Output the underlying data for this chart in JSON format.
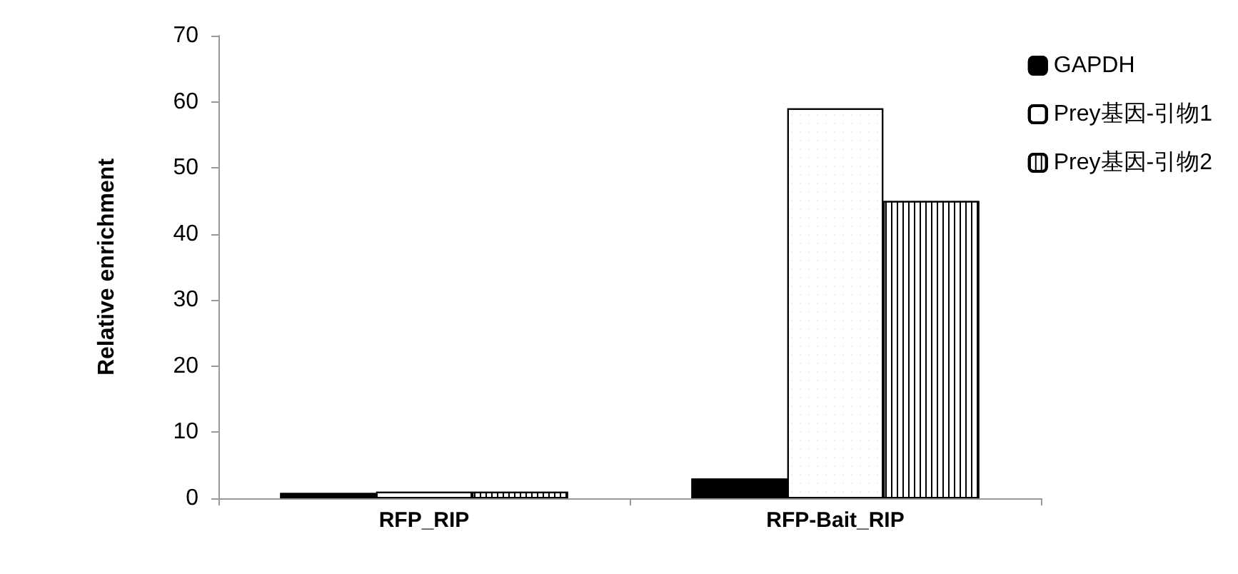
{
  "chart_data": {
    "type": "bar",
    "ylabel": "Relative enrichment",
    "categories": [
      "RFP_RIP",
      "RFP-Bait_RIP"
    ],
    "series": [
      {
        "name": "GAPDH",
        "color": "#000000",
        "values": [
          0.8,
          3
        ]
      },
      {
        "name": "Prey基因-引物1",
        "color": "#ffffff",
        "values": [
          1,
          59
        ]
      },
      {
        "name": "Prey基因-引物2",
        "color": "#ffffff",
        "values": [
          1,
          45
        ]
      }
    ],
    "ylim": [
      0,
      70
    ],
    "yticks": [
      0,
      10,
      20,
      30,
      40,
      50,
      60,
      70
    ],
    "grid": false,
    "legend": "top right"
  }
}
